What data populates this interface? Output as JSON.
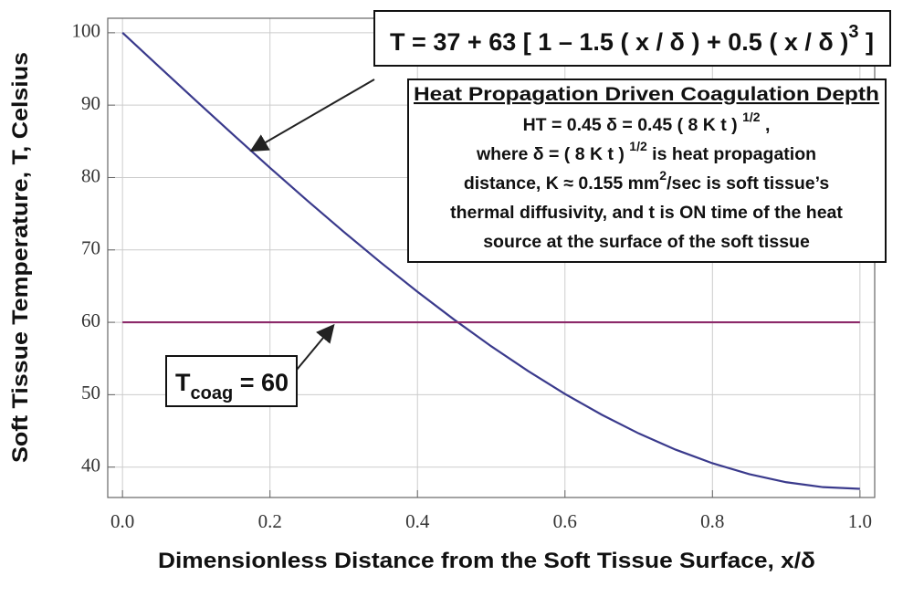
{
  "chart_data": {
    "type": "line",
    "y_label": "Soft Tissue Temperature, T, Celsius",
    "x_label": "Dimensionless Distance from the Soft Tissue Surface, x/δ",
    "xlim": [
      -0.02,
      1.02
    ],
    "ylim": [
      35.8,
      102
    ],
    "xticks": [
      {
        "value": 0,
        "label": "0.0"
      },
      0.2,
      0.4,
      0.6,
      0.8,
      {
        "value": 1,
        "label": "1.0"
      }
    ],
    "yticks": [
      40,
      50,
      60,
      70,
      80,
      90,
      100
    ],
    "grid": true,
    "series": [
      {
        "color": "#3a3a8c",
        "x": [
          0,
          0.05,
          0.1,
          0.15,
          0.2,
          0.25,
          0.3,
          0.35,
          0.4,
          0.45,
          0.5,
          0.55,
          0.6,
          0.65,
          0.7,
          0.75,
          0.8,
          0.85,
          0.9,
          0.95,
          1
        ],
        "values": [
          100,
          95.28,
          90.58,
          85.93,
          81.35,
          76.87,
          72.5,
          68.28,
          64.22,
          60.35,
          56.69,
          53.27,
          50.1,
          47.23,
          44.65,
          42.41,
          40.53,
          39.02,
          37.91,
          37.23,
          37
        ]
      },
      {
        "color": "#8c2a6a",
        "x": [
          0,
          1
        ],
        "values": [
          60,
          60
        ]
      }
    ],
    "equation": [
      "T = 37 + 63 [ 1 – 1.5 ( x / δ )  + 0.5 ( x / δ )",
      "3",
      " ]"
    ],
    "info_box": {
      "title": "Heat Propagation Driven Coagulation Depth",
      "lines": [
        [
          "HT = 0.45 δ = 0.45 ( 8 K t ) ",
          "1/2",
          " ,"
        ],
        [
          "where δ = ( 8 K t ) ",
          "1/2",
          "  is heat propagation"
        ],
        [
          "distance,  K ≈ 0.155 mm",
          "2",
          "/sec is soft tissue’s"
        ],
        [
          "thermal diffusivity, and t is ON time of the heat"
        ],
        [
          "source at the surface of the soft tissue"
        ]
      ]
    },
    "threshold_label": [
      "T",
      "coag",
      " = 60"
    ]
  }
}
